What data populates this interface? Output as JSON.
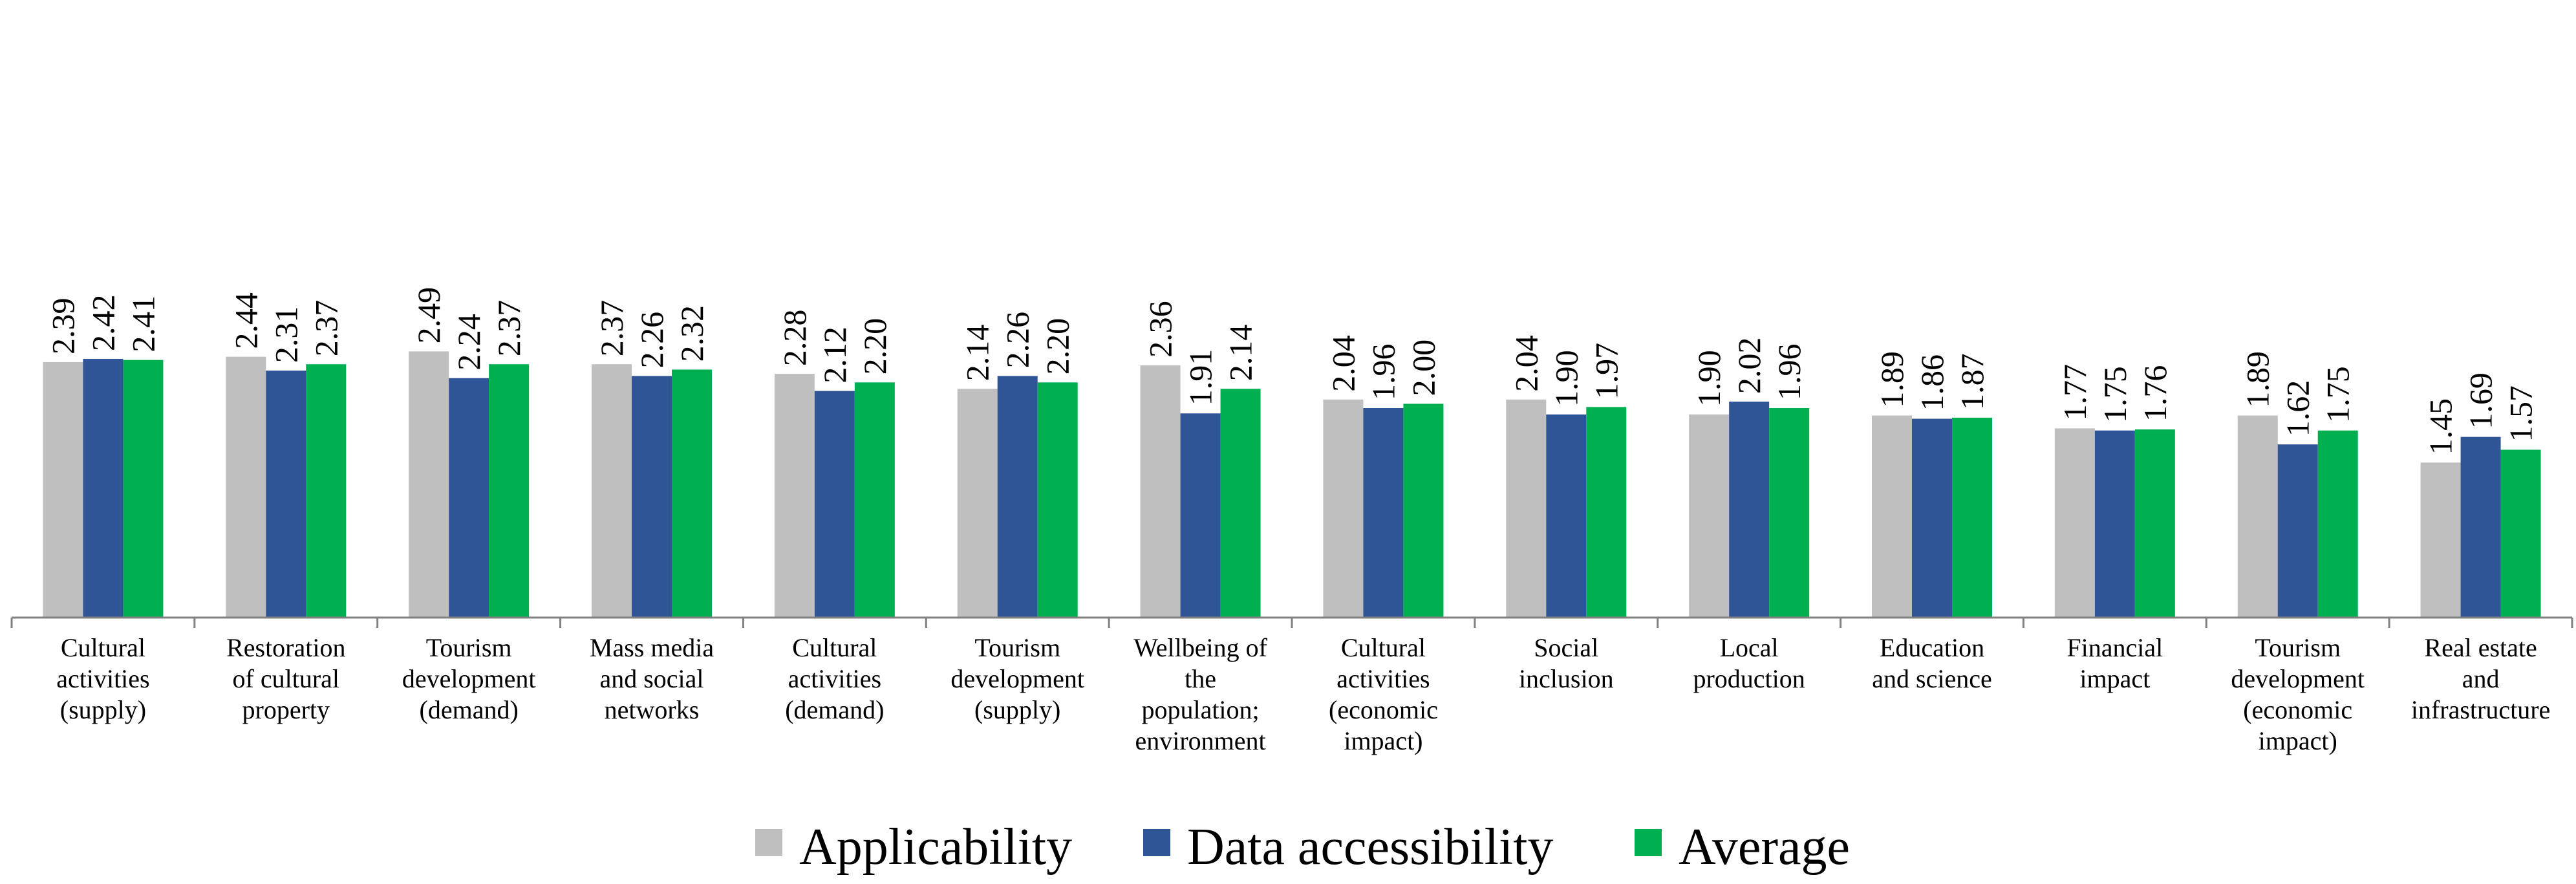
{
  "chart_data": {
    "type": "bar",
    "title": "",
    "xlabel": "",
    "ylabel": "",
    "ylim": [
      0,
      2.75
    ],
    "grid": false,
    "legend_position": "bottom-center",
    "categories": [
      [
        "Cultural",
        "activities",
        "(supply)"
      ],
      [
        "Restoration",
        "of cultural",
        "property"
      ],
      [
        "Tourism",
        "development",
        "(demand)"
      ],
      [
        "Mass media",
        "and social",
        "networks"
      ],
      [
        "Cultural",
        "activities",
        "(demand)"
      ],
      [
        "Tourism",
        "development",
        "(supply)"
      ],
      [
        "Wellbeing of",
        "the",
        "population;",
        "environment"
      ],
      [
        "Cultural",
        "activities",
        "(economic",
        "impact)"
      ],
      [
        "Social",
        "inclusion"
      ],
      [
        "Local",
        "production"
      ],
      [
        "Education",
        "and science"
      ],
      [
        "Financial",
        "impact"
      ],
      [
        "Tourism",
        "development",
        "(economic",
        "impact)"
      ],
      [
        "Real estate",
        "and",
        "infrastructure"
      ]
    ],
    "series": [
      {
        "name": "Applicability",
        "color": "#bfbfbf",
        "values": [
          2.39,
          2.44,
          2.49,
          2.37,
          2.28,
          2.14,
          2.36,
          2.04,
          2.04,
          1.9,
          1.89,
          1.77,
          1.89,
          1.45
        ],
        "labels": [
          "2.39",
          "2.44",
          "2.49",
          "2.37",
          "2.28",
          "2.14",
          "2.36",
          "2.04",
          "2.04",
          "1.90",
          "1.89",
          "1.77",
          "1.89",
          "1.45"
        ]
      },
      {
        "name": "Data accessibility",
        "color": "#2f5597",
        "values": [
          2.42,
          2.31,
          2.24,
          2.26,
          2.12,
          2.26,
          1.91,
          1.96,
          1.9,
          2.02,
          1.86,
          1.75,
          1.62,
          1.69
        ],
        "labels": [
          "2.42",
          "2.31",
          "2.24",
          "2.26",
          "2.12",
          "2.26",
          "1.91",
          "1.96",
          "1.90",
          "2.02",
          "1.86",
          "1.75",
          "1.62",
          "1.69"
        ]
      },
      {
        "name": "Average",
        "color": "#00b050",
        "values": [
          2.41,
          2.37,
          2.37,
          2.32,
          2.2,
          2.2,
          2.14,
          2.0,
          1.97,
          1.96,
          1.87,
          1.76,
          1.75,
          1.57
        ],
        "labels": [
          "2.41",
          "2.37",
          "2.37",
          "2.32",
          "2.20",
          "2.20",
          "2.14",
          "2.00",
          "1.97",
          "1.96",
          "1.87",
          "1.76",
          "1.75",
          "1.57"
        ]
      }
    ]
  }
}
